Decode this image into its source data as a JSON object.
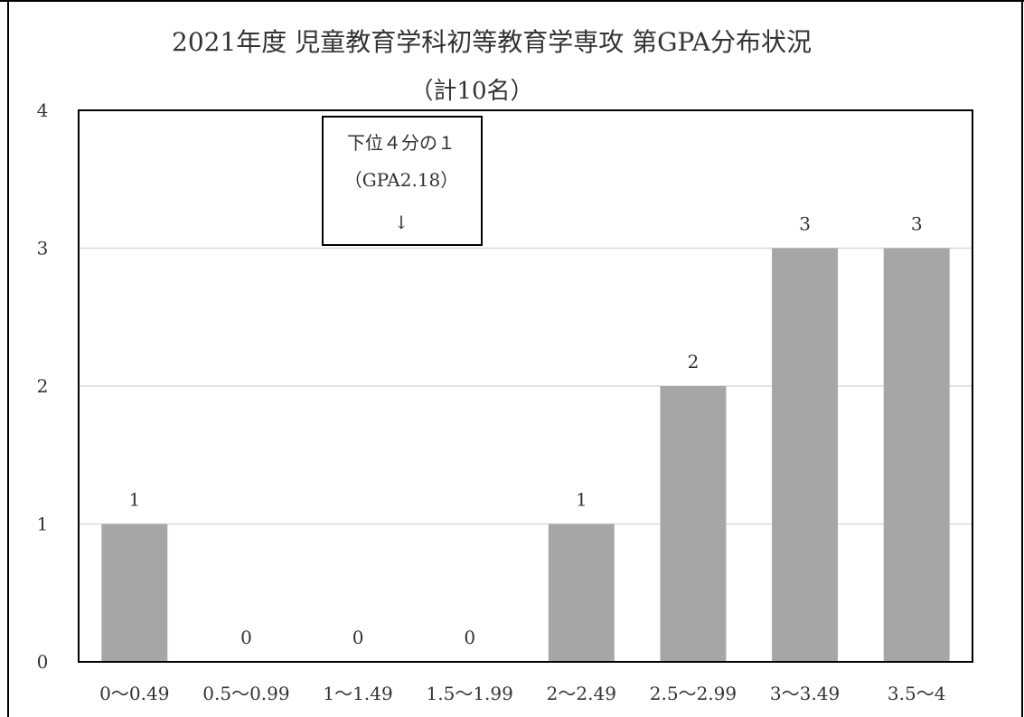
{
  "chart_data": {
    "type": "bar",
    "title": "2021年度 児童教育学科初等教育学専攻 第GPA分布状況",
    "subtitle": "（計10名）",
    "categories": [
      "0〜0.49",
      "0.5〜0.99",
      "1〜1.49",
      "1.5〜1.99",
      "2〜2.49",
      "2.5〜2.99",
      "3〜3.49",
      "3.5〜4"
    ],
    "values": [
      1,
      0,
      0,
      0,
      1,
      2,
      3,
      3
    ],
    "data_labels": [
      "1",
      "0",
      "0",
      "0",
      "1",
      "2",
      "3",
      "3"
    ],
    "ylim": [
      0,
      4
    ],
    "yticks": [
      "0",
      "1",
      "2",
      "3",
      "4"
    ],
    "grid": true,
    "legend": "none",
    "bar_color": "#a6a6a6",
    "grid_color": "#d9d9d9",
    "annotation": {
      "lines": [
        "下位４分の１",
        "（GPA2.18）",
        "↓"
      ]
    }
  }
}
